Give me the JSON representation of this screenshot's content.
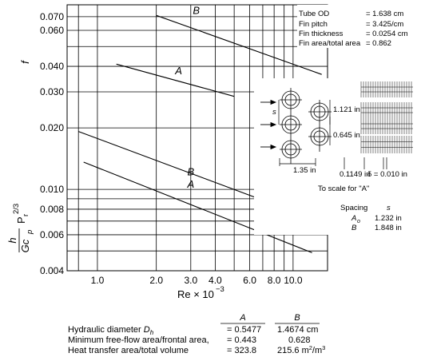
{
  "chart_data": {
    "type": "line",
    "x_scale": "log",
    "y_scale": "log",
    "xlabel": "Re × 10",
    "xlabel_exp": "−3",
    "xlim": [
      0.7,
      15
    ],
    "ylim": [
      0.004,
      0.08
    ],
    "x_ticks": [
      {
        "v": 1.0,
        "label": "1.0"
      },
      {
        "v": 2.0,
        "label": "2.0"
      },
      {
        "v": 3.0,
        "label": "3.0"
      },
      {
        "v": 4.0,
        "label": "4.0"
      },
      {
        "v": 6.0,
        "label": "6.0"
      },
      {
        "v": 8.0,
        "label": "8.0"
      },
      {
        "v": 10.0,
        "label": "10.0"
      }
    ],
    "y_ticks": [
      {
        "v": 0.004,
        "label": "0.004"
      },
      {
        "v": 0.006,
        "label": "0.006"
      },
      {
        "v": 0.008,
        "label": "0.008"
      },
      {
        "v": 0.01,
        "label": "0.010"
      },
      {
        "v": 0.02,
        "label": "0.020"
      },
      {
        "v": 0.03,
        "label": "0.030"
      },
      {
        "v": 0.04,
        "label": "0.040"
      },
      {
        "v": 0.06,
        "label": "0.060"
      },
      {
        "v": 0.07,
        "label": "0.070"
      }
    ],
    "x_grid": [
      0.8,
      1,
      2,
      3,
      4,
      5,
      6,
      7,
      8,
      9,
      10,
      15
    ],
    "y_grid": [
      0.004,
      0.005,
      0.006,
      0.007,
      0.008,
      0.009,
      0.01,
      0.02,
      0.03,
      0.04,
      0.05,
      0.06,
      0.07,
      0.08
    ],
    "f_label": "f",
    "j_label": {
      "num": "h",
      "den": "Gc",
      "den_sub": "p",
      "pr": "P",
      "pr_sub": "r",
      "pr_exp": "2/3"
    },
    "series": [
      {
        "name": "A",
        "quantity": "f",
        "x": [
          1.25,
          5.0
        ],
        "y": [
          0.041,
          0.0285
        ],
        "label_at": [
          2.6,
          0.0365
        ]
      },
      {
        "name": "B",
        "quantity": "f",
        "x": [
          2.0,
          14.0
        ],
        "y": [
          0.071,
          0.0365
        ],
        "label_at": [
          3.2,
          0.072
        ]
      },
      {
        "name": "B",
        "quantity": "j",
        "x": [
          0.8,
          10.0
        ],
        "y": [
          0.0192,
          0.0078
        ],
        "label_at": [
          3.0,
          0.0117
        ]
      },
      {
        "name": "A",
        "quantity": "j",
        "x": [
          0.85,
          12.5
        ],
        "y": [
          0.0136,
          0.0049
        ],
        "label_at": [
          3.0,
          0.0102
        ]
      }
    ],
    "annotations": {
      "spec_rows": [
        {
          "label": "Tube OD",
          "value": "= 1.638 cm"
        },
        {
          "label": "Fin pitch",
          "value": "= 3.425/cm"
        },
        {
          "label": "Fin thickness",
          "value": "= 0.0254 cm"
        },
        {
          "label": "Fin area/total area",
          "value": "= 0.862"
        }
      ],
      "dims": {
        "s": "s",
        "d1": "1.121 in",
        "d2": "0.645 in",
        "d3": "1.35 in",
        "d4": "0.1149 in",
        "d5": "δ = 0.010 in"
      },
      "scale_note": "To scale for \"A\"",
      "spacing": {
        "h1": "Spacing",
        "h2": "s",
        "rows": [
          {
            "k": "A",
            "k_sub": "o",
            "v": "1.232 in"
          },
          {
            "k": "B",
            "v": "1.848 in"
          }
        ]
      }
    }
  },
  "table": {
    "col_a": "A",
    "col_b": "B",
    "rows": [
      {
        "label": "Hydraulic diameter ",
        "sym": "D",
        "sym_sub": "h",
        "a": "= 0.5477",
        "b": "1.4674 cm"
      },
      {
        "label": "Minimum free-flow area/frontal area,",
        "a": "= 0.443",
        "b": "0.628"
      },
      {
        "label": "Heat transfer area/total volume",
        "a": "= 323.8",
        "b": "215.6 m",
        "b_exp": "2",
        "b_tail": "/m",
        "b_exp2": "3"
      }
    ]
  }
}
